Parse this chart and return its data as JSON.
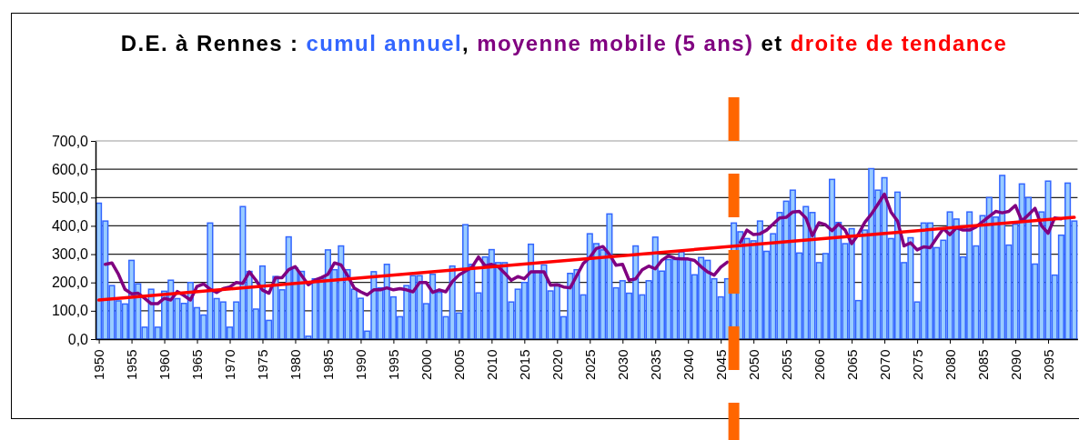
{
  "chart_data": {
    "type": "bar",
    "title": "D.E. à Rennes :",
    "annotations": [
      ",",
      "et"
    ],
    "x": [
      1950,
      1951,
      1952,
      1953,
      1954,
      1955,
      1956,
      1957,
      1958,
      1959,
      1960,
      1961,
      1962,
      1963,
      1964,
      1965,
      1966,
      1967,
      1968,
      1969,
      1970,
      1971,
      1972,
      1973,
      1974,
      1975,
      1976,
      1977,
      1978,
      1979,
      1980,
      1981,
      1982,
      1983,
      1984,
      1985,
      1986,
      1987,
      1988,
      1989,
      1990,
      1991,
      1992,
      1993,
      1994,
      1995,
      1996,
      1997,
      1998,
      1999,
      2000,
      2001,
      2002,
      2003,
      2004,
      2005,
      2006,
      2007,
      2008,
      2009,
      2010,
      2011,
      2012,
      2013,
      2014,
      2015,
      2016,
      2017,
      2018,
      2019,
      2020,
      2021,
      2022,
      2023,
      2024,
      2025,
      2026,
      2027,
      2028,
      2029,
      2030,
      2031,
      2032,
      2033,
      2034,
      2035,
      2036,
      2037,
      2038,
      2039,
      2040,
      2041,
      2042,
      2043,
      2044,
      2045,
      2046,
      2047,
      2048,
      2049,
      2050,
      2051,
      2052,
      2053,
      2054,
      2055,
      2056,
      2057,
      2058,
      2059,
      2060,
      2061,
      2062,
      2063,
      2064,
      2065,
      2066,
      2067,
      2068,
      2069,
      2070,
      2071,
      2072,
      2073,
      2074,
      2075,
      2076,
      2077,
      2078,
      2079,
      2080,
      2081,
      2082,
      2083,
      2084,
      2085,
      2086,
      2087,
      2088,
      2089,
      2090,
      2091,
      2092,
      2093,
      2094,
      2095,
      2096,
      2097,
      2098,
      2099
    ],
    "series": [
      {
        "name": "cumul annuel",
        "color": "#99ccff",
        "values": [
          480,
          417,
          189,
          135,
          124,
          278,
          195,
          42,
          176,
          42,
          169,
          208,
          143,
          126,
          200,
          111,
          85,
          410,
          143,
          131,
          42,
          131,
          468,
          239,
          106,
          258,
          66,
          221,
          174,
          361,
          251,
          239,
          10,
          213,
          213,
          315,
          245,
          329,
          245,
          176,
          144,
          28,
          238,
          181,
          264,
          149,
          79,
          189,
          224,
          224,
          125,
          229,
          165,
          79,
          258,
          92,
          404,
          264,
          163,
          290,
          316,
          270,
          270,
          131,
          176,
          200,
          335,
          240,
          262,
          170,
          194,
          79,
          232,
          245,
          156,
          372,
          337,
          315,
          442,
          181,
          206,
          162,
          329,
          156,
          206,
          360,
          240,
          281,
          281,
          308,
          281,
          227,
          288,
          278,
          213,
          149,
          213,
          410,
          379,
          355,
          347,
          417,
          310,
          372,
          447,
          487,
          526,
          304,
          468,
          447,
          270,
          302,
          564,
          412,
          337,
          390,
          136,
          385,
          602,
          526,
          570,
          355,
          519,
          270,
          358,
          131,
          410,
          410,
          323,
          349,
          449,
          424,
          290,
          449,
          329,
          436,
          500,
          431,
          578,
          332,
          406,
          548,
          500,
          265,
          449,
          558,
          226,
          367,
          551,
          417
        ]
      },
      {
        "name": "moyenne mobile (5 ans)",
        "type": "line",
        "color": "#800080",
        "values": [
          null,
          264,
          269,
          229,
          176,
          160,
          162,
          144,
          125,
          125,
          144,
          138,
          168,
          154,
          138,
          186,
          195,
          176,
          165,
          178,
          184,
          200,
          197,
          237,
          208,
          173,
          162,
          217,
          217,
          245,
          256,
          224,
          192,
          208,
          217,
          229,
          269,
          262,
          224,
          181,
          167,
          156,
          174,
          174,
          181,
          174,
          178,
          174,
          167,
          200,
          200,
          165,
          174,
          167,
          203,
          226,
          240,
          254,
          290,
          259,
          264,
          256,
          233,
          208,
          221,
          213,
          238,
          238,
          238,
          190,
          192,
          184,
          181,
          224,
          267,
          288,
          320,
          327,
          299,
          261,
          264,
          208,
          213,
          245,
          258,
          248,
          278,
          294,
          285,
          283,
          283,
          278,
          256,
          237,
          226,
          254,
          272,
          null,
          342,
          385,
          369,
          372,
          385,
          406,
          428,
          430,
          449,
          451,
          428,
          365,
          411,
          404,
          383,
          406,
          385,
          337,
          369,
          412,
          441,
          476,
          512,
          449,
          417,
          329,
          340,
          315,
          326,
          323,
          358,
          390,
          369,
          393,
          385,
          385,
          396,
          415,
          433,
          451,
          446,
          451,
          472,
          417,
          439,
          462,
          400,
          374,
          428,
          425,
          null,
          null
        ]
      },
      {
        "name": "droite de tendance",
        "type": "line",
        "color": "#ff0000",
        "x": [
          1950,
          2099
        ],
        "values": [
          138,
          430
        ]
      }
    ],
    "xlim": [
      1949.5,
      2099.5
    ],
    "xticks": [
      1950,
      1955,
      1960,
      1965,
      1970,
      1975,
      1980,
      1985,
      1990,
      1995,
      2000,
      2005,
      2010,
      2015,
      2020,
      2025,
      2030,
      2035,
      2040,
      2045,
      2050,
      2055,
      2060,
      2065,
      2070,
      2075,
      2080,
      2085,
      2090,
      2095
    ],
    "ylim": [
      0,
      700
    ],
    "yticks": [
      {
        "value": 0,
        "label": "0,0"
      },
      {
        "value": 100,
        "label": "100,0"
      },
      {
        "value": 200,
        "label": "200,0"
      },
      {
        "value": 300,
        "label": "300,0"
      },
      {
        "value": 400,
        "label": "400,0"
      },
      {
        "value": 500,
        "label": "500,0"
      },
      {
        "value": 600,
        "label": "600,0"
      },
      {
        "value": 700,
        "label": "700,0"
      }
    ],
    "grid": "y",
    "ref_lines": [
      {
        "axis": "x",
        "value": 2047,
        "color": "#ff6600",
        "line_style": "dashed"
      }
    ]
  }
}
